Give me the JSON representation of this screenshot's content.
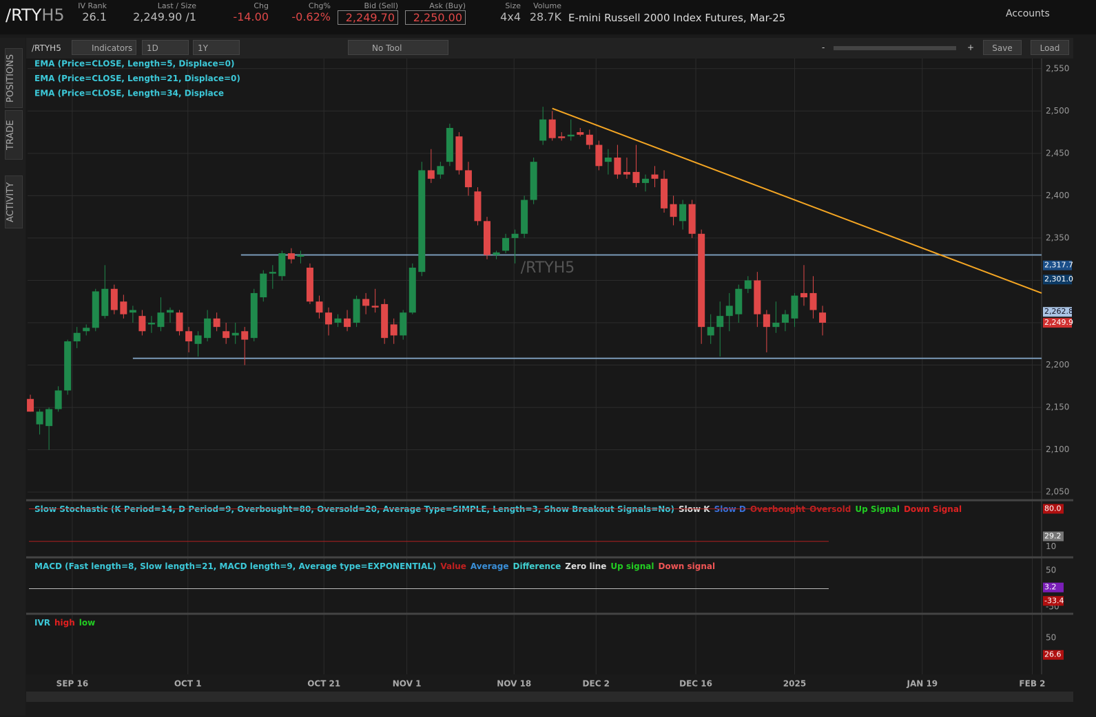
{
  "header": {
    "symbol": "/RTY",
    "symbol_suffix": "H5",
    "fields": [
      {
        "label": "IV Rank",
        "value": "26.1"
      },
      {
        "label": "Last / Size",
        "value": "2,249.90 /1"
      },
      {
        "label": "Chg",
        "value": "-14.00"
      },
      {
        "label": "Chg%",
        "value": "-0.62%"
      },
      {
        "label": "Bid (Sell)",
        "value": "2,249.70"
      },
      {
        "label": "Ask (Buy)",
        "value": "2,250.00"
      },
      {
        "label": "Size",
        "value": "4x4"
      },
      {
        "label": "Volume",
        "value": "28.7K"
      }
    ],
    "description": "E-mini Russell 2000 Index Futures, Mar-25",
    "accounts": "Accounts"
  },
  "sidebar": {
    "tabs": [
      "POSITIONS",
      "TRADE",
      "ACTIVITY"
    ]
  },
  "toolbar": {
    "symbol": "/RTYH5",
    "indicators": "Indicators",
    "aggregation": "1D",
    "period": "1Y",
    "tool": "No Tool",
    "zoom_minus": "-",
    "zoom_plus": "+",
    "save": "Save",
    "load": "Load"
  },
  "chart_data": {
    "type": "candlestick",
    "watermark": "/RTYH5",
    "studies": [
      "EMA (Price=CLOSE, Length=5, Displace=0)",
      "EMA (Price=CLOSE, Length=21, Displace=0)",
      "EMA (Price=CLOSE, Length=34, Displace"
    ],
    "candles": [
      [
        2160,
        2165,
        2145,
        2145
      ],
      [
        2130,
        2148,
        2118,
        2145
      ],
      [
        2128,
        2150,
        2100,
        2148
      ],
      [
        2148,
        2175,
        2145,
        2170
      ],
      [
        2170,
        2230,
        2165,
        2228
      ],
      [
        2228,
        2245,
        2220,
        2238
      ],
      [
        2240,
        2248,
        2235,
        2244
      ],
      [
        2244,
        2290,
        2240,
        2287
      ],
      [
        2258,
        2318,
        2255,
        2290
      ],
      [
        2290,
        2295,
        2260,
        2265
      ],
      [
        2275,
        2283,
        2255,
        2260
      ],
      [
        2262,
        2270,
        2250,
        2265
      ],
      [
        2258,
        2265,
        2235,
        2240
      ],
      [
        2248,
        2258,
        2238,
        2250
      ],
      [
        2245,
        2280,
        2240,
        2262
      ],
      [
        2262,
        2268,
        2250,
        2265
      ],
      [
        2262,
        2265,
        2235,
        2240
      ],
      [
        2240,
        2245,
        2215,
        2228
      ],
      [
        2225,
        2240,
        2210,
        2235
      ],
      [
        2232,
        2265,
        2228,
        2255
      ],
      [
        2255,
        2262,
        2240,
        2245
      ],
      [
        2240,
        2250,
        2225,
        2232
      ],
      [
        2235,
        2250,
        2225,
        2238
      ],
      [
        2240,
        2245,
        2200,
        2230
      ],
      [
        2232,
        2290,
        2228,
        2285
      ],
      [
        2280,
        2312,
        2275,
        2308
      ],
      [
        2308,
        2318,
        2290,
        2310
      ],
      [
        2305,
        2335,
        2300,
        2332
      ],
      [
        2332,
        2338,
        2320,
        2325
      ],
      [
        2328,
        2335,
        2320,
        2330
      ],
      [
        2315,
        2320,
        2272,
        2275
      ],
      [
        2275,
        2282,
        2255,
        2262
      ],
      [
        2262,
        2268,
        2235,
        2248
      ],
      [
        2250,
        2260,
        2245,
        2255
      ],
      [
        2255,
        2265,
        2240,
        2245
      ],
      [
        2250,
        2282,
        2245,
        2278
      ],
      [
        2278,
        2285,
        2260,
        2270
      ],
      [
        2270,
        2290,
        2262,
        2268
      ],
      [
        2272,
        2278,
        2225,
        2232
      ],
      [
        2248,
        2255,
        2225,
        2235
      ],
      [
        2235,
        2265,
        2230,
        2262
      ],
      [
        2262,
        2320,
        2260,
        2315
      ],
      [
        2310,
        2440,
        2305,
        2430
      ],
      [
        2430,
        2455,
        2415,
        2420
      ],
      [
        2425,
        2440,
        2420,
        2435
      ],
      [
        2440,
        2485,
        2435,
        2480
      ],
      [
        2470,
        2475,
        2425,
        2430
      ],
      [
        2430,
        2440,
        2400,
        2410
      ],
      [
        2405,
        2410,
        2365,
        2370
      ],
      [
        2370,
        2375,
        2325,
        2330
      ],
      [
        2330,
        2335,
        2325,
        2333
      ],
      [
        2335,
        2355,
        2332,
        2350
      ],
      [
        2350,
        2360,
        2320,
        2355
      ],
      [
        2355,
        2400,
        2350,
        2395
      ],
      [
        2395,
        2445,
        2390,
        2440
      ],
      [
        2465,
        2505,
        2460,
        2490
      ],
      [
        2490,
        2500,
        2465,
        2468
      ],
      [
        2470,
        2475,
        2465,
        2468
      ],
      [
        2470,
        2490,
        2465,
        2472
      ],
      [
        2475,
        2480,
        2470,
        2472
      ],
      [
        2472,
        2478,
        2455,
        2460
      ],
      [
        2460,
        2465,
        2430,
        2435
      ],
      [
        2440,
        2455,
        2425,
        2445
      ],
      [
        2445,
        2460,
        2420,
        2425
      ],
      [
        2428,
        2445,
        2420,
        2425
      ],
      [
        2428,
        2460,
        2410,
        2415
      ],
      [
        2415,
        2425,
        2405,
        2420
      ],
      [
        2425,
        2435,
        2410,
        2420
      ],
      [
        2420,
        2430,
        2380,
        2385
      ],
      [
        2390,
        2400,
        2365,
        2375
      ],
      [
        2370,
        2395,
        2360,
        2390
      ],
      [
        2390,
        2395,
        2350,
        2355
      ],
      [
        2355,
        2360,
        2225,
        2245
      ],
      [
        2235,
        2260,
        2225,
        2245
      ],
      [
        2245,
        2275,
        2210,
        2258
      ],
      [
        2258,
        2285,
        2240,
        2270
      ],
      [
        2260,
        2295,
        2250,
        2290
      ],
      [
        2290,
        2305,
        2285,
        2300
      ],
      [
        2300,
        2310,
        2245,
        2260
      ],
      [
        2260,
        2265,
        2215,
        2245
      ],
      [
        2245,
        2275,
        2238,
        2250
      ],
      [
        2250,
        2265,
        2240,
        2260
      ],
      [
        2255,
        2285,
        2245,
        2282
      ],
      [
        2285,
        2318,
        2270,
        2280
      ],
      [
        2285,
        2305,
        2255,
        2265
      ],
      [
        2262,
        2270,
        2235,
        2250
      ]
    ],
    "up_color": "#1f8a4c",
    "down_color": "#e04848",
    "xlim": [
      -0.3,
      108.5
    ],
    "xticks": [
      {
        "value": 4.5,
        "label": "SEP 16"
      },
      {
        "value": 16.9,
        "label": "OCT 1"
      },
      {
        "value": 31.5,
        "label": "OCT 21"
      },
      {
        "value": 40.4,
        "label": "NOV 1"
      },
      {
        "value": 51.9,
        "label": "NOV 18"
      },
      {
        "value": 60.7,
        "label": "DEC 2"
      },
      {
        "value": 71.4,
        "label": "DEC 16"
      },
      {
        "value": 82,
        "label": "2025"
      },
      {
        "value": 95.7,
        "label": "JAN 19"
      },
      {
        "value": 107.5,
        "label": "FEB 2"
      }
    ],
    "ylim": [
      2042,
      2562
    ],
    "yticks": [
      {
        "value": 2050,
        "label": "2,050"
      },
      {
        "value": 2100,
        "label": "2,100"
      },
      {
        "value": 2150,
        "label": "2,150"
      },
      {
        "value": 2200,
        "label": "2,200"
      },
      {
        "value": 2250,
        "label": "2,250"
      },
      {
        "value": 2300,
        "label": "2,300"
      },
      {
        "value": 2350,
        "label": "2,350"
      },
      {
        "value": 2400,
        "label": "2,400"
      },
      {
        "value": 2450,
        "label": "2,450"
      },
      {
        "value": 2500,
        "label": "2,500"
      },
      {
        "value": 2550,
        "label": "2,550"
      }
    ],
    "hlines": [
      {
        "y": 2330,
        "x": [
          22.6,
          108.5
        ]
      },
      {
        "y": 2208,
        "x": [
          11,
          108.5
        ]
      }
    ],
    "trendline": {
      "x": [
        56,
        108.5
      ],
      "y": [
        2503,
        2285
      ],
      "color": "#f5a623"
    },
    "price_labels": [
      {
        "value": 2317.7,
        "label": "2,317.7",
        "color": "#1b4f8a"
      },
      {
        "value": 2301,
        "label": "2,301.0",
        "color": "#0d3b66"
      },
      {
        "value": 2262.8,
        "label": "2,262.8",
        "color": "#aac4e4"
      },
      {
        "value": 2249.9,
        "label": "2,249.9",
        "color": "#d03030"
      }
    ],
    "panels": [
      {
        "title": "Slow Stochastic (K Period=14, D Period=9, Overbought=80, Oversold=20, Average Type=SIMPLE, Length=3, Show Breakout Signals=No)",
        "legend": [
          {
            "text": "Slow K",
            "color": "#dddddd"
          },
          {
            "text": "Slow D",
            "color": "#3a6fd8"
          },
          {
            "text": "Overbought",
            "color": "#c02020"
          },
          {
            "text": "Oversold",
            "color": "#c02020"
          },
          {
            "text": "Up Signal",
            "color": "#22cc22"
          },
          {
            "text": "Down Signal",
            "color": "#dd2222"
          }
        ],
        "ylim": [
          -7,
          92
        ],
        "yticks": [
          10
        ],
        "levels": [
          {
            "value": 80,
            "color": "#b02020"
          },
          {
            "value": 20,
            "color": "#b02020"
          }
        ],
        "badges": [
          {
            "value": 80,
            "label": "80.0",
            "color": "#b01010"
          },
          {
            "value": 29.2,
            "label": "29.2",
            "color": "#777777"
          }
        ]
      },
      {
        "title": "MACD (Fast length=8, Slow length=21, MACD length=9, Average type=EXPONENTIAL)",
        "legend": [
          {
            "text": "Value",
            "color": "#c02020"
          },
          {
            "text": "Average",
            "color": "#3a8fd8"
          },
          {
            "text": "Difference",
            "color": "#40d0d0"
          },
          {
            "text": "Zero line",
            "color": "#dddddd"
          },
          {
            "text": "Up signal",
            "color": "#22cc22"
          },
          {
            "text": "Down signal",
            "color": "#ee5555"
          }
        ],
        "ylim": [
          -64.8,
          79.6
        ],
        "yticks": [
          50,
          -50
        ],
        "levels": [
          {
            "value": 0,
            "color": "#bbbbbb"
          }
        ],
        "badges": [
          {
            "value": 3.2,
            "label": "3.2",
            "color": "#7a1fb8"
          },
          {
            "value": -33.4,
            "label": "-33.4",
            "color": "#b01010"
          }
        ]
      },
      {
        "title": "IVR",
        "legend": [
          {
            "text": "high",
            "color": "#e02020"
          },
          {
            "text": "low",
            "color": "#22cc22"
          }
        ],
        "ylim": [
          0,
          80
        ],
        "yticks": [
          50
        ],
        "levels": [],
        "badges": [
          {
            "value": 26.6,
            "label": "26.6",
            "color": "#b01010"
          }
        ]
      }
    ]
  }
}
